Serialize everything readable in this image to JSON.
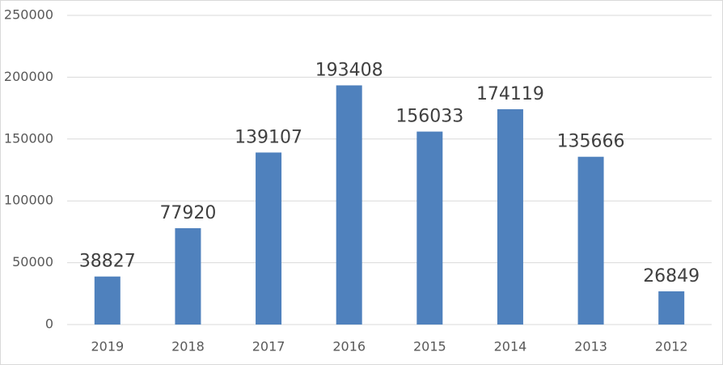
{
  "chart_data": {
    "type": "bar",
    "categories": [
      "2019",
      "2018",
      "2017",
      "2016",
      "2015",
      "2014",
      "2013",
      "2012"
    ],
    "values": [
      38827,
      77920,
      139107,
      193408,
      156033,
      174119,
      135666,
      26849
    ],
    "color": "#4f81bd",
    "ylim": [
      0,
      250000
    ],
    "yticks": [
      0,
      50000,
      100000,
      150000,
      200000,
      250000
    ],
    "grid": true
  }
}
